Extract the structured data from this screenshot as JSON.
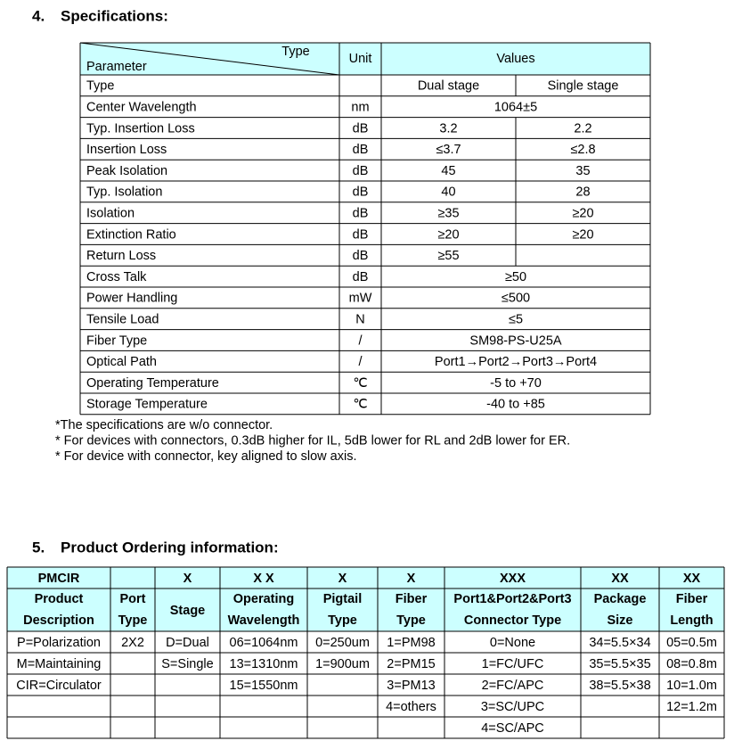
{
  "section4": {
    "number": "4.",
    "title": "Specifications:",
    "table": {
      "corner_top": "Type",
      "corner_bottom": "Parameter",
      "unit_header": "Unit",
      "values_header": "Values",
      "rows": [
        {
          "parameter": "Type",
          "dual": "Dual stage",
          "single": "Single stage"
        },
        {
          "parameter": "Center Wavelength",
          "unit": "nm",
          "value": "1064±5"
        },
        {
          "parameter": "Typ. Insertion Loss",
          "unit": "dB",
          "dual": "3.2",
          "single": "2.2"
        },
        {
          "parameter": "Insertion Loss",
          "unit": "dB",
          "dual": "≤3.7",
          "single": "≤2.8"
        },
        {
          "parameter": "Peak Isolation",
          "unit": "dB",
          "dual": "45",
          "single": "35"
        },
        {
          "parameter": "Typ. Isolation",
          "unit": "dB",
          "dual": "40",
          "single": "28"
        },
        {
          "parameter": "Isolation",
          "unit": "dB",
          "dual": "≥35",
          "single": "≥20"
        },
        {
          "parameter": "Extinction Ratio",
          "unit": "dB",
          "dual": "≥20",
          "single": "≥20"
        },
        {
          "parameter": "Return Loss",
          "unit": "dB",
          "dual": "≥55"
        },
        {
          "parameter": "Cross Talk",
          "unit": "dB",
          "value": "≥50"
        },
        {
          "parameter": "Power Handling",
          "unit": "mW",
          "value": "≤500"
        },
        {
          "parameter": "Tensile Load",
          "unit": "N",
          "value": "≤5"
        },
        {
          "parameter": "Fiber Type",
          "unit": "/",
          "value": "SM98-PS-U25A"
        },
        {
          "parameter": "Optical Path",
          "unit": "/",
          "value": "Port1→Port2→Port3→Port4"
        },
        {
          "parameter": "Operating Temperature",
          "unit": "℃",
          "value": "-5 to +70"
        },
        {
          "parameter": "Storage Temperature",
          "unit": "℃",
          "value": "-40 to +85"
        }
      ]
    },
    "notes": [
      "*The specifications are w/o connector.",
      "* For devices with connectors, 0.3dB higher for IL, 5dB lower for RL and 2dB lower for ER.",
      "* For device with connector, key aligned to slow axis."
    ]
  },
  "section5": {
    "number": "5.",
    "title": "Product Ordering information:",
    "columns": [
      {
        "code": "PMCIR",
        "description": [
          "Product",
          "Description"
        ],
        "options": [
          "P=Polarization",
          "M=Maintaining",
          "CIR=Circulator"
        ]
      },
      {
        "code": null,
        "description": [
          "Port",
          "Type"
        ],
        "options": [
          "2X2"
        ]
      },
      {
        "code": "X",
        "description": [
          "Stage"
        ],
        "options": [
          "D=Dual",
          "S=Single"
        ]
      },
      {
        "code": "X X",
        "description": [
          "Operating",
          "Wavelength"
        ],
        "options": [
          "06=1064nm",
          "13=1310nm",
          "15=1550nm"
        ]
      },
      {
        "code": "X",
        "description": [
          "Pigtail",
          "Type"
        ],
        "options": [
          "0=250um",
          "1=900um"
        ]
      },
      {
        "code": "X",
        "description": [
          "Fiber",
          "Type"
        ],
        "options": [
          "1=PM98",
          "2=PM15",
          "3=PM13",
          "4=others"
        ]
      },
      {
        "code": "XXX",
        "description": [
          "Port1&Port2&Port3",
          "Connector Type"
        ],
        "options": [
          "0=None",
          "1=FC/UFC",
          "2=FC/APC",
          "3=SC/UPC",
          "4=SC/APC"
        ]
      },
      {
        "code": "XX",
        "description": [
          "Package",
          "Size"
        ],
        "options": [
          "34=5.5×34",
          "35=5.5×35",
          "38=5.5×38"
        ]
      },
      {
        "code": "XX",
        "description": [
          "Fiber",
          "Length"
        ],
        "options": [
          "05=0.5m",
          "08=0.8m",
          "10=1.0m",
          "12=1.2m"
        ]
      }
    ]
  }
}
